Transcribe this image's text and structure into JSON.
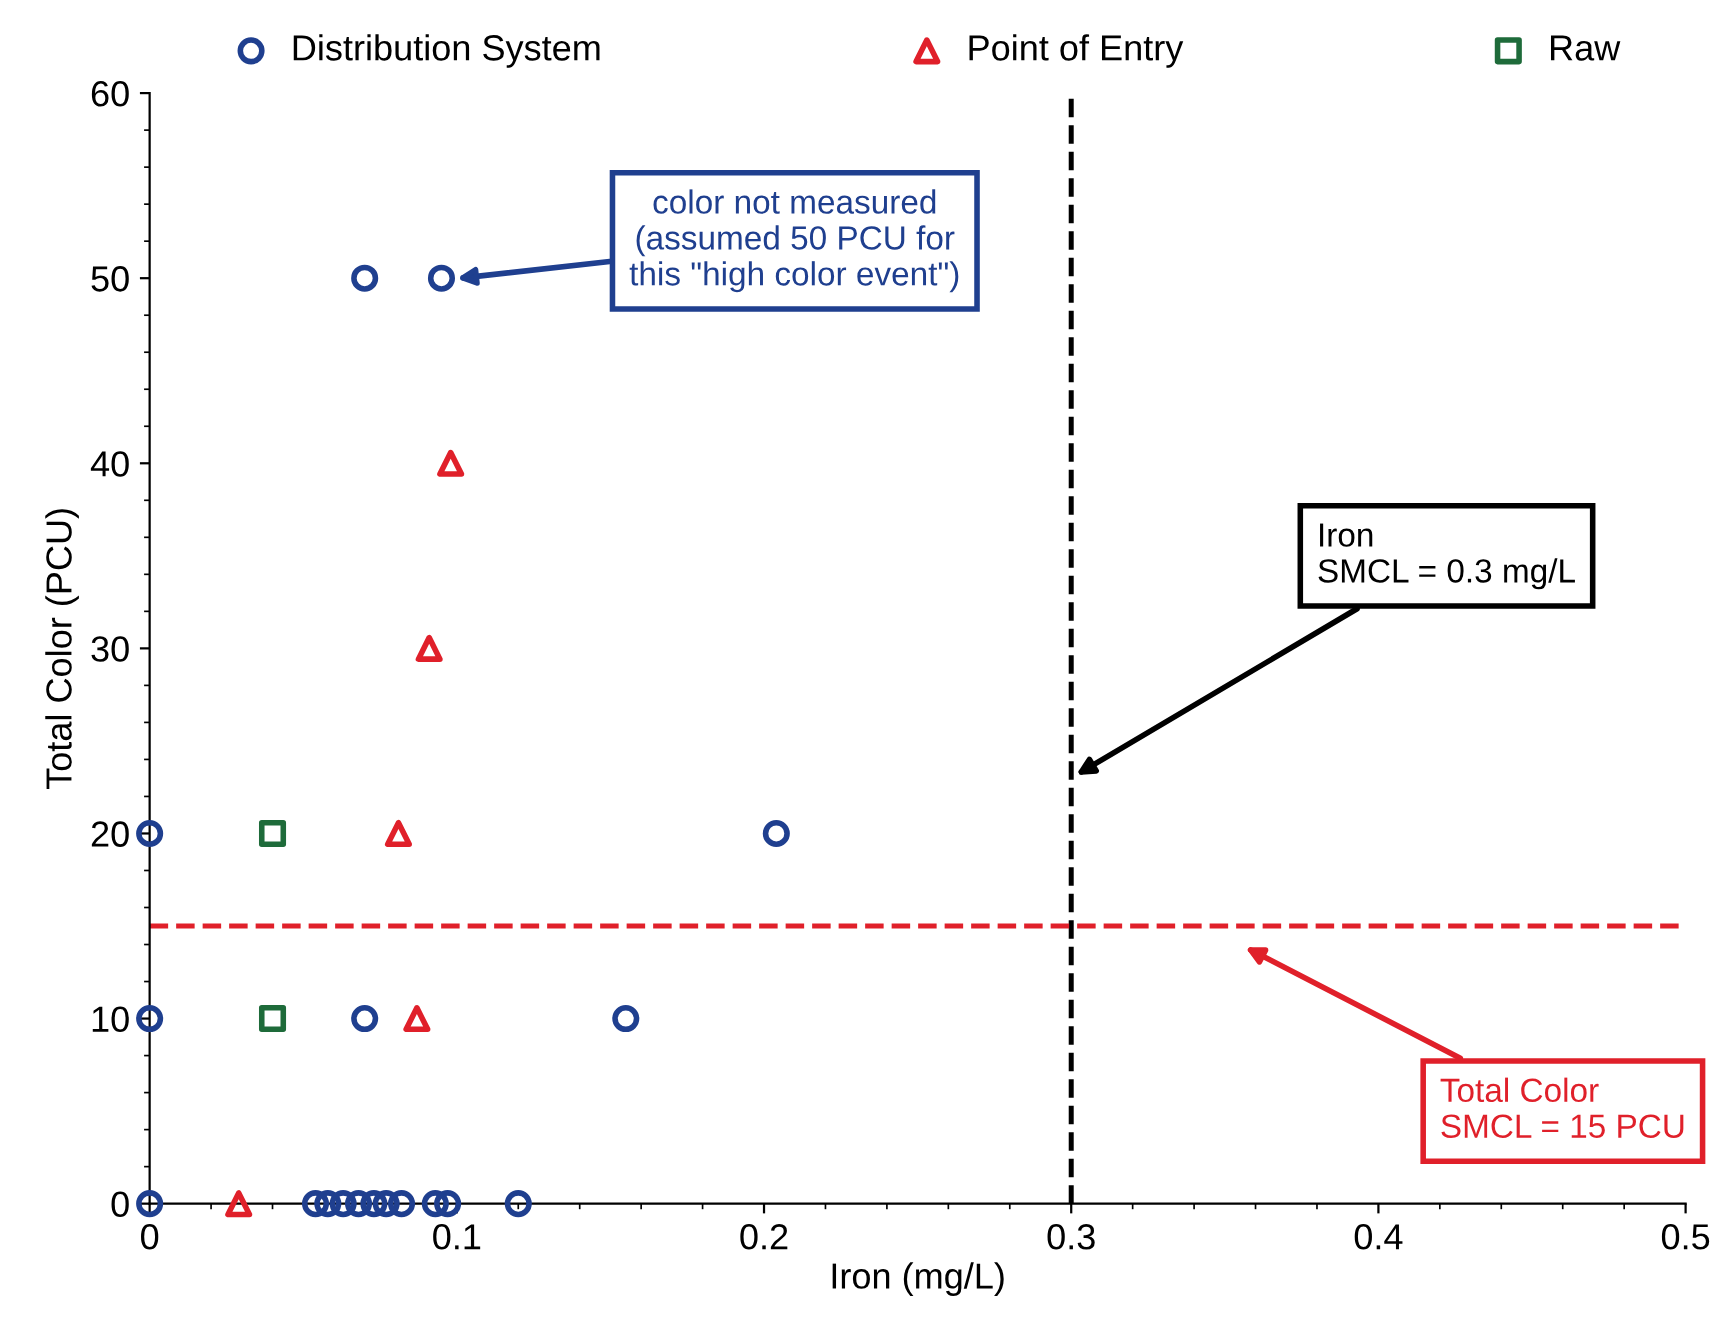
{
  "chart_data": {
    "type": "scatter",
    "xlabel": "Iron (mg/L)",
    "ylabel": "Total Color (PCU)",
    "xlim": [
      0,
      0.5
    ],
    "ylim": [
      0,
      60
    ],
    "xticks": [
      0,
      0.1,
      0.2,
      0.3,
      0.4,
      0.5
    ],
    "yticks": [
      0,
      10,
      20,
      30,
      40,
      50,
      60
    ],
    "legend": "top",
    "grid": false,
    "series": [
      {
        "name": "Distribution System",
        "color": "#1f3f8f",
        "marker": "circle",
        "x": [
          0,
          0,
          0,
          0.07,
          0.095,
          0.07,
          0.155,
          0.204,
          0.054,
          0.058,
          0.063,
          0.068,
          0.073,
          0.077,
          0.082,
          0.093,
          0.097,
          0.12
        ],
        "values": [
          0,
          10,
          20,
          50,
          50,
          10,
          10,
          20,
          0,
          0,
          0,
          0,
          0,
          0,
          0,
          0,
          0,
          0
        ]
      },
      {
        "name": "Point of Entry",
        "color": "#e0202a",
        "marker": "triangle",
        "x": [
          0.029,
          0.087,
          0.081,
          0.091,
          0.098
        ],
        "values": [
          0,
          10,
          20,
          30,
          40
        ]
      },
      {
        "name": "Raw",
        "color": "#1e6b3a",
        "marker": "square",
        "x": [
          0.04,
          0.04
        ],
        "values": [
          10,
          20
        ]
      }
    ],
    "ref_lines": [
      {
        "axis": "x",
        "value": 0.3,
        "label": "Iron\nSMCL = 0.3 mg/L",
        "color": "#000000",
        "line_style": "dashed"
      },
      {
        "axis": "y",
        "value": 15,
        "label": "Total Color\nSMCL = 15 PCU",
        "color": "#e0202a",
        "line_style": "dashed"
      }
    ],
    "annotations": [
      "color not measured\n(assumed 50 PCU for\nthis \"high color event\")"
    ]
  }
}
